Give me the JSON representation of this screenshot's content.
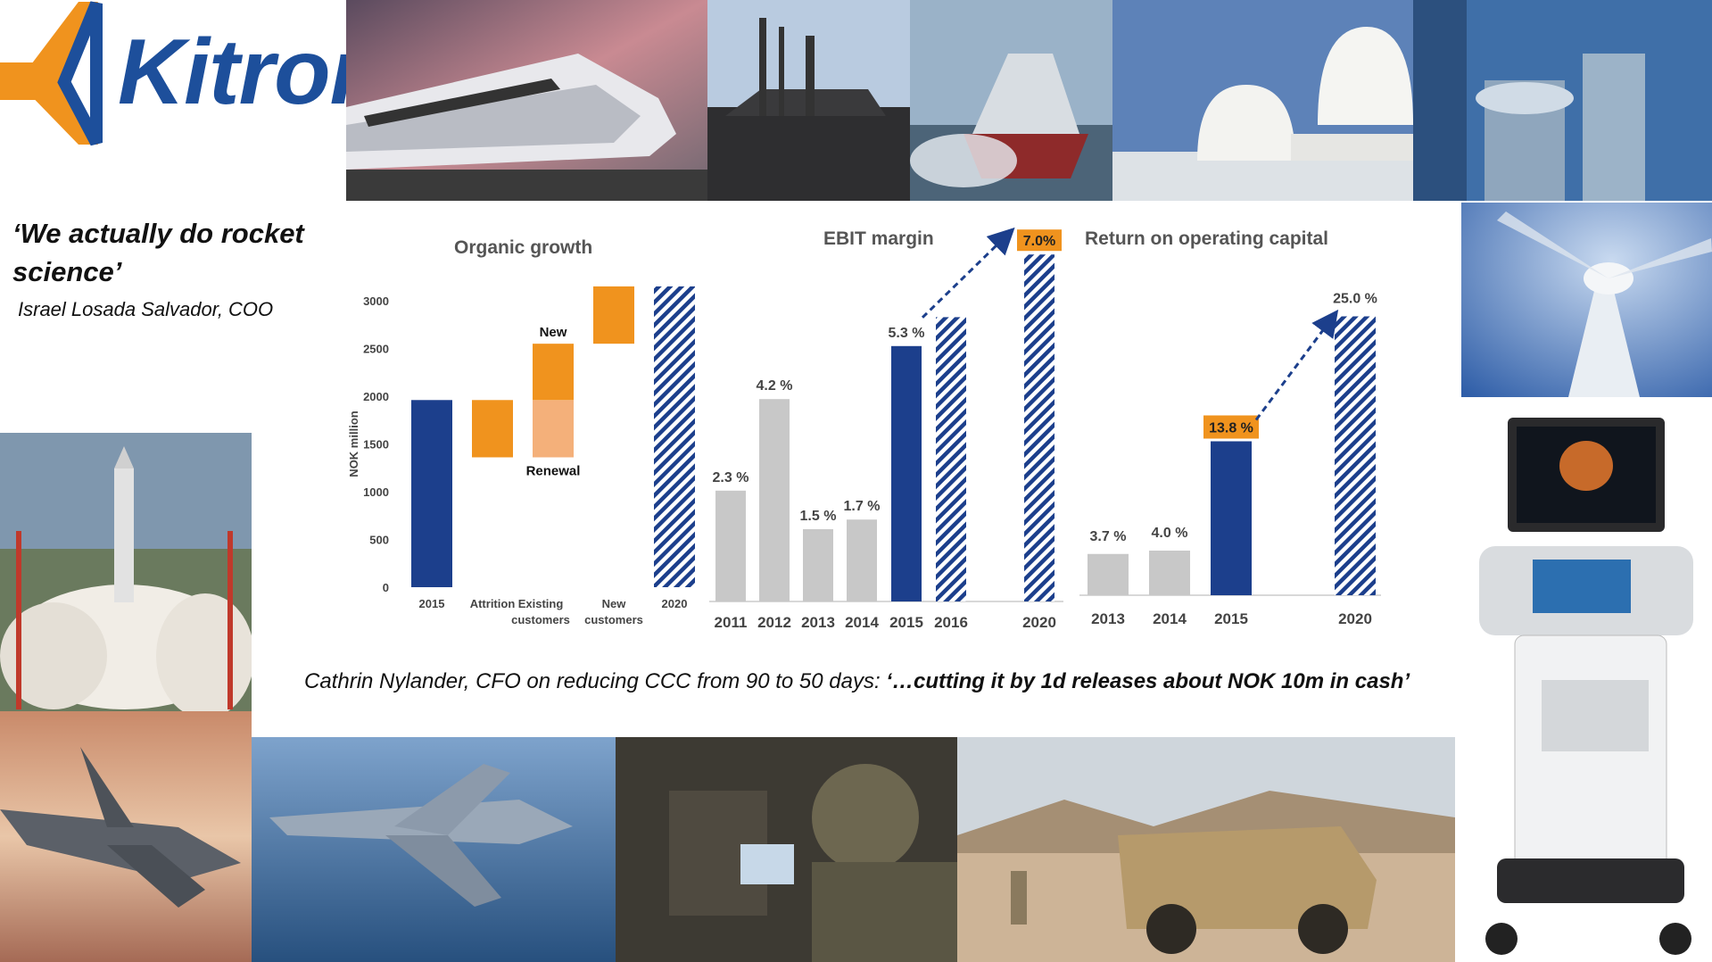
{
  "brand": {
    "name": "Kitron",
    "color_blue": "#1d4f9b",
    "color_orange": "#f0931e"
  },
  "quotes": {
    "rocket_quote": "‘We actually do rocket science’",
    "rocket_author": "Israel Losada Salvador, COO",
    "cfo_prefix": "Cathrin Nylander, CFO on reducing CCC from 90 to 50 days: ",
    "cfo_quote": "‘…cutting it by 1d releases about NOK 10m in cash’"
  },
  "photos": [
    "high-speed-train",
    "submarine",
    "rescue-boat",
    "ship-radar-domes",
    "industrial-machine",
    "wind-turbine",
    "rocket-launch",
    "f35-jet",
    "gripen-jet",
    "soldier-in-vehicle",
    "military-vehicle",
    "ultrasound-scanner"
  ],
  "colors": {
    "navy": "#1c3f8c",
    "orange": "#f0931e",
    "light_orange": "#f4b07a",
    "gray": "#c8c8c8"
  },
  "chart_data": [
    {
      "type": "bar",
      "title": "Organic growth",
      "ylabel": "NOK million",
      "ylim": [
        0,
        3000
      ],
      "yticks": [
        0,
        500,
        1000,
        1500,
        2000,
        2500,
        3000
      ],
      "categories": [
        "2015",
        "Attrition",
        "Existing customers",
        "New customers",
        "2020"
      ],
      "category_lines": [
        [
          "2015"
        ],
        [
          "Attrition"
        ],
        [
          "Existing",
          "customers"
        ],
        [
          "New",
          "customers"
        ],
        [
          "2020"
        ]
      ],
      "bars": [
        {
          "category": "2015",
          "base": 0,
          "top": 1960,
          "style": "navy"
        },
        {
          "category": "Attrition",
          "base": 1360,
          "top": 1960,
          "style": "orange"
        },
        {
          "category": "Existing customers",
          "base": 1360,
          "top": 1960,
          "style": "light_orange"
        },
        {
          "category": "Existing customers",
          "base": 1960,
          "top": 2550,
          "style": "orange"
        },
        {
          "category": "New customers",
          "base": 2550,
          "top": 3150,
          "style": "orange"
        },
        {
          "category": "2020",
          "base": 0,
          "top": 3150,
          "style": "hatched"
        }
      ],
      "annotations": [
        "New",
        "Renewal"
      ]
    },
    {
      "type": "bar",
      "title": "EBIT margin",
      "categories": [
        "2011",
        "2012",
        "2013",
        "2014",
        "2015",
        "2016",
        "2020"
      ],
      "values": [
        2.3,
        4.2,
        1.5,
        1.7,
        5.3,
        null,
        7.0
      ],
      "visual_values": [
        2.3,
        4.2,
        1.5,
        1.7,
        5.3,
        5.9,
        7.2
      ],
      "labels": [
        "2.3 %",
        "4.2 %",
        "1.5 %",
        "1.7 %",
        "5.3 %",
        "",
        "7.0%"
      ],
      "styles": [
        "gray",
        "gray",
        "gray",
        "gray",
        "navy",
        "hatched",
        "hatched"
      ],
      "arrow": [
        "2015",
        "2020"
      ]
    },
    {
      "type": "bar",
      "title": "Return on operating capital",
      "categories": [
        "2013",
        "2014",
        "2015",
        "2020"
      ],
      "values": [
        3.7,
        4.0,
        13.8,
        25.0
      ],
      "labels": [
        "3.7 %",
        "4.0 %",
        "13.8 %",
        "25.0 %"
      ],
      "styles": [
        "gray",
        "gray",
        "navy",
        "hatched"
      ],
      "arrow": [
        "2015",
        "2020"
      ]
    }
  ]
}
